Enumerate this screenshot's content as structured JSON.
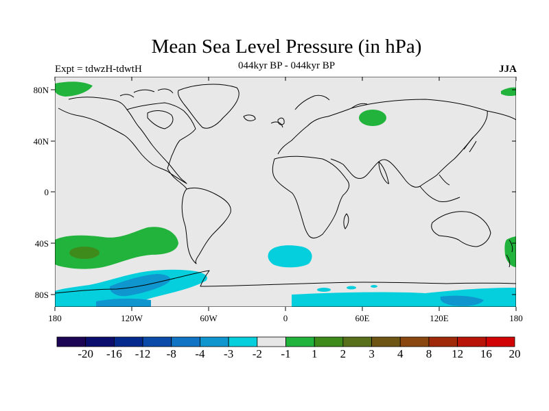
{
  "title": "Mean Sea Level Pressure (in hPa)",
  "experiment": "Expt = tdwzH-tdwtH",
  "period": "044kyr BP - 044kyr BP",
  "season": "JJA",
  "colors": {
    "land_background": "#e8e8e8",
    "coastline": "#000000"
  },
  "lat_ticks": [
    "80N",
    "40N",
    "0",
    "40S",
    "80S"
  ],
  "lon_ticks": [
    "180",
    "120W",
    "60W",
    "0",
    "60E",
    "120E",
    "180"
  ],
  "colorbar": {
    "labels": [
      "-20",
      "-16",
      "-12",
      "-8",
      "-4",
      "-3",
      "-2",
      "-1",
      "1",
      "2",
      "3",
      "4",
      "8",
      "12",
      "16",
      "20"
    ],
    "colors": [
      "#1c0554",
      "#0c0e6e",
      "#052a8e",
      "#0a4aa8",
      "#1173c4",
      "#0f96cf",
      "#05cfdc",
      "#e6e6e6",
      "#22b33c",
      "#3e8b1c",
      "#59701a",
      "#6f5514",
      "#8a4710",
      "#9e2a0a",
      "#b81508",
      "#d10304"
    ]
  }
}
